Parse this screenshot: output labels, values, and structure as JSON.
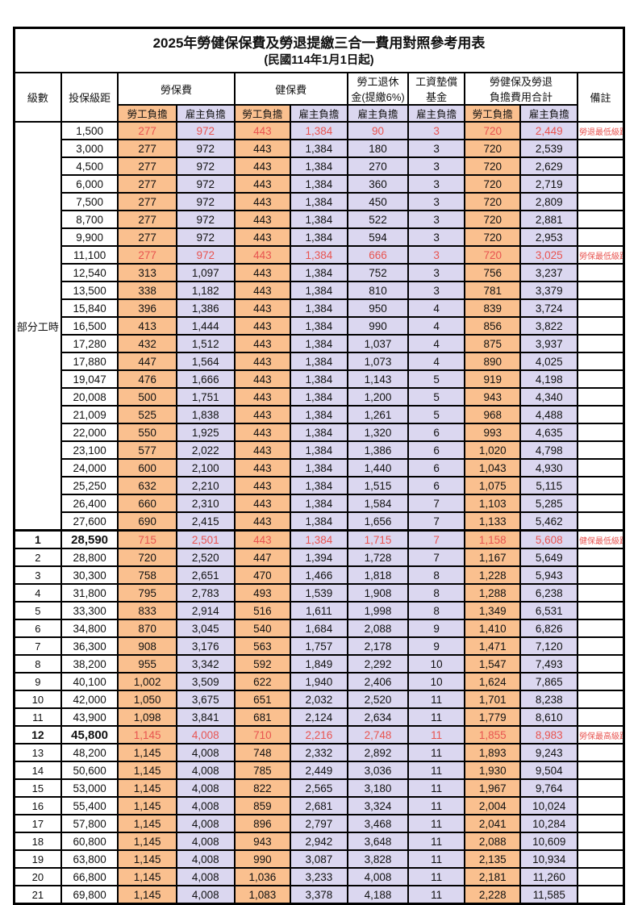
{
  "title": "2025年勞健保保費及勞退提繳三合一費用對照參考用表",
  "subtitle": "(民國114年1月1日起)",
  "colors": {
    "employee_bg": "#fac08f",
    "employer_bg": "#dbd7f0",
    "highlight_text": "#e85450",
    "border": "#000000"
  },
  "header": {
    "level": "級數",
    "salary_bracket": "投保級距",
    "labor_insurance": "勞保費",
    "health_insurance": "健保費",
    "pension_line1": "勞工退休",
    "pension_line2": "金(提繳6%)",
    "wage_fund_line1": "工資墊償",
    "wage_fund_line2": "基金",
    "total_line1": "勞健保及勞退",
    "total_line2": "負擔費用合計",
    "remark": "備註",
    "employee_share": "勞工負擔",
    "employer_share": "雇主負擔"
  },
  "part_time_label": "部分工時",
  "part_time_span": 23,
  "chart_data": {
    "type": "table",
    "title": "2025年勞健保保費及勞退提繳三合一費用對照參考用表 (民國114年1月1日起)",
    "columns": [
      "級數",
      "投保級距",
      "勞保費-勞工負擔",
      "勞保費-雇主負擔",
      "健保費-勞工負擔",
      "健保費-雇主負擔",
      "勞工退休金(提繳6%)-雇主負擔",
      "工資墊償基金-雇主負擔",
      "合計-勞工負擔",
      "合計-雇主負擔",
      "備註"
    ]
  },
  "rows": [
    {
      "level": "",
      "salary": "1,500",
      "values": [
        "277",
        "972",
        "443",
        "1,384",
        "90",
        "3",
        "720",
        "2,449"
      ],
      "remark": "勞退最低級距",
      "highlight": true,
      "big": false,
      "section": false
    },
    {
      "level": "",
      "salary": "3,000",
      "values": [
        "277",
        "972",
        "443",
        "1,384",
        "180",
        "3",
        "720",
        "2,539"
      ],
      "remark": "",
      "highlight": false,
      "big": false,
      "section": false
    },
    {
      "level": "",
      "salary": "4,500",
      "values": [
        "277",
        "972",
        "443",
        "1,384",
        "270",
        "3",
        "720",
        "2,629"
      ],
      "remark": "",
      "highlight": false,
      "big": false,
      "section": false
    },
    {
      "level": "",
      "salary": "6,000",
      "values": [
        "277",
        "972",
        "443",
        "1,384",
        "360",
        "3",
        "720",
        "2,719"
      ],
      "remark": "",
      "highlight": false,
      "big": false,
      "section": false
    },
    {
      "level": "",
      "salary": "7,500",
      "values": [
        "277",
        "972",
        "443",
        "1,384",
        "450",
        "3",
        "720",
        "2,809"
      ],
      "remark": "",
      "highlight": false,
      "big": false,
      "section": false
    },
    {
      "level": "",
      "salary": "8,700",
      "values": [
        "277",
        "972",
        "443",
        "1,384",
        "522",
        "3",
        "720",
        "2,881"
      ],
      "remark": "",
      "highlight": false,
      "big": false,
      "section": false
    },
    {
      "level": "",
      "salary": "9,900",
      "values": [
        "277",
        "972",
        "443",
        "1,384",
        "594",
        "3",
        "720",
        "2,953"
      ],
      "remark": "",
      "highlight": false,
      "big": false,
      "section": false
    },
    {
      "level": "",
      "salary": "11,100",
      "values": [
        "277",
        "972",
        "443",
        "1,384",
        "666",
        "3",
        "720",
        "3,025"
      ],
      "remark": "勞保最低級距",
      "highlight": true,
      "big": false,
      "section": false
    },
    {
      "level": "",
      "salary": "12,540",
      "values": [
        "313",
        "1,097",
        "443",
        "1,384",
        "752",
        "3",
        "756",
        "3,237"
      ],
      "remark": "",
      "highlight": false,
      "big": false,
      "section": false
    },
    {
      "level": "",
      "salary": "13,500",
      "values": [
        "338",
        "1,182",
        "443",
        "1,384",
        "810",
        "3",
        "781",
        "3,379"
      ],
      "remark": "",
      "highlight": false,
      "big": false,
      "section": false
    },
    {
      "level": "",
      "salary": "15,840",
      "values": [
        "396",
        "1,386",
        "443",
        "1,384",
        "950",
        "4",
        "839",
        "3,724"
      ],
      "remark": "",
      "highlight": false,
      "big": false,
      "section": false
    },
    {
      "level": "",
      "salary": "16,500",
      "values": [
        "413",
        "1,444",
        "443",
        "1,384",
        "990",
        "4",
        "856",
        "3,822"
      ],
      "remark": "",
      "highlight": false,
      "big": false,
      "section": false
    },
    {
      "level": "",
      "salary": "17,280",
      "values": [
        "432",
        "1,512",
        "443",
        "1,384",
        "1,037",
        "4",
        "875",
        "3,937"
      ],
      "remark": "",
      "highlight": false,
      "big": false,
      "section": false
    },
    {
      "level": "",
      "salary": "17,880",
      "values": [
        "447",
        "1,564",
        "443",
        "1,384",
        "1,073",
        "4",
        "890",
        "4,025"
      ],
      "remark": "",
      "highlight": false,
      "big": false,
      "section": false
    },
    {
      "level": "",
      "salary": "19,047",
      "values": [
        "476",
        "1,666",
        "443",
        "1,384",
        "1,143",
        "5",
        "919",
        "4,198"
      ],
      "remark": "",
      "highlight": false,
      "big": false,
      "section": false
    },
    {
      "level": "",
      "salary": "20,008",
      "values": [
        "500",
        "1,751",
        "443",
        "1,384",
        "1,200",
        "5",
        "943",
        "4,340"
      ],
      "remark": "",
      "highlight": false,
      "big": false,
      "section": false
    },
    {
      "level": "",
      "salary": "21,009",
      "values": [
        "525",
        "1,838",
        "443",
        "1,384",
        "1,261",
        "5",
        "968",
        "4,488"
      ],
      "remark": "",
      "highlight": false,
      "big": false,
      "section": false
    },
    {
      "level": "",
      "salary": "22,000",
      "values": [
        "550",
        "1,925",
        "443",
        "1,384",
        "1,320",
        "6",
        "993",
        "4,635"
      ],
      "remark": "",
      "highlight": false,
      "big": false,
      "section": false
    },
    {
      "level": "",
      "salary": "23,100",
      "values": [
        "577",
        "2,022",
        "443",
        "1,384",
        "1,386",
        "6",
        "1,020",
        "4,798"
      ],
      "remark": "",
      "highlight": false,
      "big": false,
      "section": false
    },
    {
      "level": "",
      "salary": "24,000",
      "values": [
        "600",
        "2,100",
        "443",
        "1,384",
        "1,440",
        "6",
        "1,043",
        "4,930"
      ],
      "remark": "",
      "highlight": false,
      "big": false,
      "section": false
    },
    {
      "level": "",
      "salary": "25,250",
      "values": [
        "632",
        "2,210",
        "443",
        "1,384",
        "1,515",
        "6",
        "1,075",
        "5,115"
      ],
      "remark": "",
      "highlight": false,
      "big": false,
      "section": false
    },
    {
      "level": "",
      "salary": "26,400",
      "values": [
        "660",
        "2,310",
        "443",
        "1,384",
        "1,584",
        "7",
        "1,103",
        "5,285"
      ],
      "remark": "",
      "highlight": false,
      "big": false,
      "section": false
    },
    {
      "level": "",
      "salary": "27,600",
      "values": [
        "690",
        "2,415",
        "443",
        "1,384",
        "1,656",
        "7",
        "1,133",
        "5,462"
      ],
      "remark": "",
      "highlight": false,
      "big": false,
      "section": false
    },
    {
      "level": "1",
      "salary": "28,590",
      "values": [
        "715",
        "2,501",
        "443",
        "1,384",
        "1,715",
        "7",
        "1,158",
        "5,608"
      ],
      "remark": "健保最低級距",
      "highlight": true,
      "big": true,
      "section": true
    },
    {
      "level": "2",
      "salary": "28,800",
      "values": [
        "720",
        "2,520",
        "447",
        "1,394",
        "1,728",
        "7",
        "1,167",
        "5,649"
      ],
      "remark": "",
      "highlight": false,
      "big": false,
      "section": false
    },
    {
      "level": "3",
      "salary": "30,300",
      "values": [
        "758",
        "2,651",
        "470",
        "1,466",
        "1,818",
        "8",
        "1,228",
        "5,943"
      ],
      "remark": "",
      "highlight": false,
      "big": false,
      "section": false
    },
    {
      "level": "4",
      "salary": "31,800",
      "values": [
        "795",
        "2,783",
        "493",
        "1,539",
        "1,908",
        "8",
        "1,288",
        "6,238"
      ],
      "remark": "",
      "highlight": false,
      "big": false,
      "section": false
    },
    {
      "level": "5",
      "salary": "33,300",
      "values": [
        "833",
        "2,914",
        "516",
        "1,611",
        "1,998",
        "8",
        "1,349",
        "6,531"
      ],
      "remark": "",
      "highlight": false,
      "big": false,
      "section": false
    },
    {
      "level": "6",
      "salary": "34,800",
      "values": [
        "870",
        "3,045",
        "540",
        "1,684",
        "2,088",
        "9",
        "1,410",
        "6,826"
      ],
      "remark": "",
      "highlight": false,
      "big": false,
      "section": false
    },
    {
      "level": "7",
      "salary": "36,300",
      "values": [
        "908",
        "3,176",
        "563",
        "1,757",
        "2,178",
        "9",
        "1,471",
        "7,120"
      ],
      "remark": "",
      "highlight": false,
      "big": false,
      "section": false
    },
    {
      "level": "8",
      "salary": "38,200",
      "values": [
        "955",
        "3,342",
        "592",
        "1,849",
        "2,292",
        "10",
        "1,547",
        "7,493"
      ],
      "remark": "",
      "highlight": false,
      "big": false,
      "section": false
    },
    {
      "level": "9",
      "salary": "40,100",
      "values": [
        "1,002",
        "3,509",
        "622",
        "1,940",
        "2,406",
        "10",
        "1,624",
        "7,865"
      ],
      "remark": "",
      "highlight": false,
      "big": false,
      "section": false
    },
    {
      "level": "10",
      "salary": "42,000",
      "values": [
        "1,050",
        "3,675",
        "651",
        "2,032",
        "2,520",
        "11",
        "1,701",
        "8,238"
      ],
      "remark": "",
      "highlight": false,
      "big": false,
      "section": false
    },
    {
      "level": "11",
      "salary": "43,900",
      "values": [
        "1,098",
        "3,841",
        "681",
        "2,124",
        "2,634",
        "11",
        "1,779",
        "8,610"
      ],
      "remark": "",
      "highlight": false,
      "big": false,
      "section": false
    },
    {
      "level": "12",
      "salary": "45,800",
      "values": [
        "1,145",
        "4,008",
        "710",
        "2,216",
        "2,748",
        "11",
        "1,855",
        "8,983"
      ],
      "remark": "勞保最高級距",
      "highlight": true,
      "big": true,
      "section": false
    },
    {
      "level": "13",
      "salary": "48,200",
      "values": [
        "1,145",
        "4,008",
        "748",
        "2,332",
        "2,892",
        "11",
        "1,893",
        "9,243"
      ],
      "remark": "",
      "highlight": false,
      "big": false,
      "section": false
    },
    {
      "level": "14",
      "salary": "50,600",
      "values": [
        "1,145",
        "4,008",
        "785",
        "2,449",
        "3,036",
        "11",
        "1,930",
        "9,504"
      ],
      "remark": "",
      "highlight": false,
      "big": false,
      "section": false
    },
    {
      "level": "15",
      "salary": "53,000",
      "values": [
        "1,145",
        "4,008",
        "822",
        "2,565",
        "3,180",
        "11",
        "1,967",
        "9,764"
      ],
      "remark": "",
      "highlight": false,
      "big": false,
      "section": false
    },
    {
      "level": "16",
      "salary": "55,400",
      "values": [
        "1,145",
        "4,008",
        "859",
        "2,681",
        "3,324",
        "11",
        "2,004",
        "10,024"
      ],
      "remark": "",
      "highlight": false,
      "big": false,
      "section": false
    },
    {
      "level": "17",
      "salary": "57,800",
      "values": [
        "1,145",
        "4,008",
        "896",
        "2,797",
        "3,468",
        "11",
        "2,041",
        "10,284"
      ],
      "remark": "",
      "highlight": false,
      "big": false,
      "section": false
    },
    {
      "level": "18",
      "salary": "60,800",
      "values": [
        "1,145",
        "4,008",
        "943",
        "2,942",
        "3,648",
        "11",
        "2,088",
        "10,609"
      ],
      "remark": "",
      "highlight": false,
      "big": false,
      "section": false
    },
    {
      "level": "19",
      "salary": "63,800",
      "values": [
        "1,145",
        "4,008",
        "990",
        "3,087",
        "3,828",
        "11",
        "2,135",
        "10,934"
      ],
      "remark": "",
      "highlight": false,
      "big": false,
      "section": false
    },
    {
      "level": "20",
      "salary": "66,800",
      "values": [
        "1,145",
        "4,008",
        "1,036",
        "3,233",
        "4,008",
        "11",
        "2,181",
        "11,260"
      ],
      "remark": "",
      "highlight": false,
      "big": false,
      "section": false
    },
    {
      "level": "21",
      "salary": "69,800",
      "values": [
        "1,145",
        "4,008",
        "1,083",
        "3,378",
        "4,188",
        "11",
        "2,228",
        "11,585"
      ],
      "remark": "",
      "highlight": false,
      "big": false,
      "section": false
    }
  ]
}
